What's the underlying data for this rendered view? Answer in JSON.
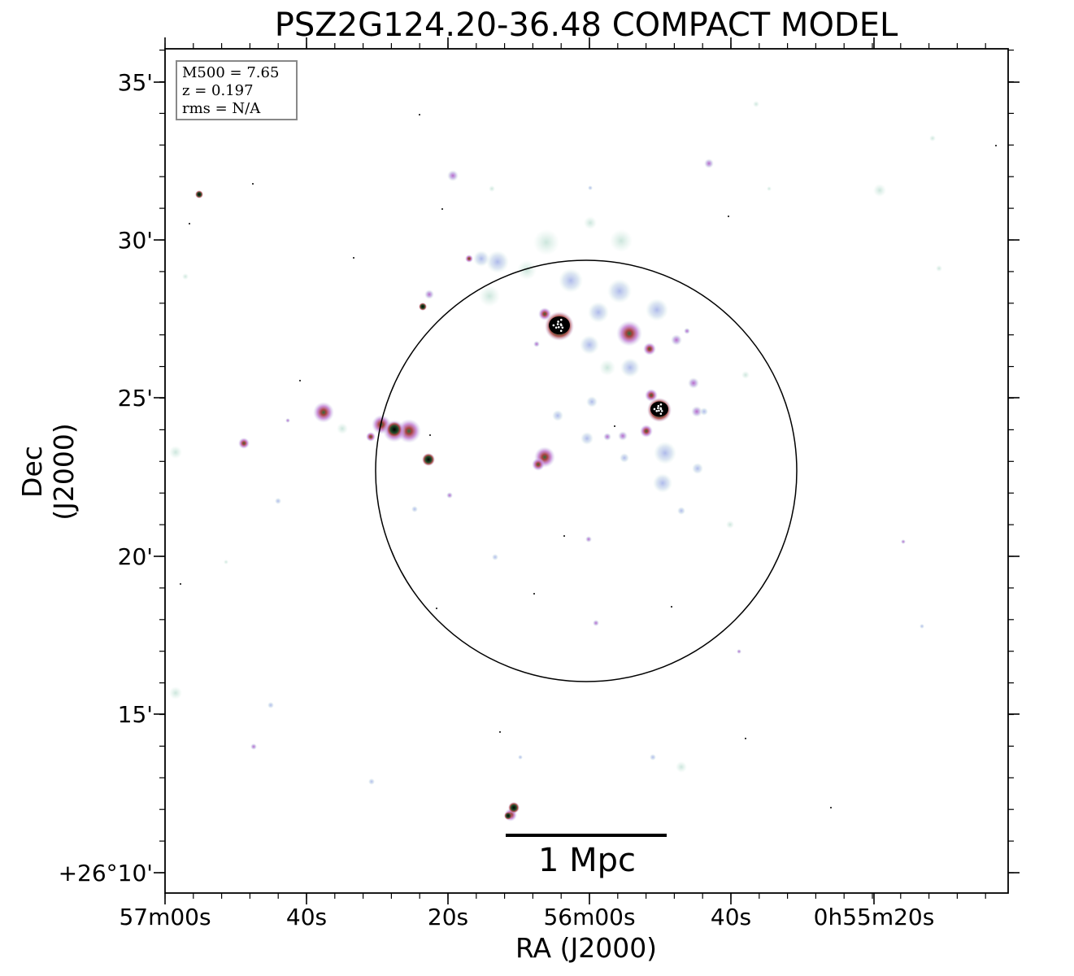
{
  "chart_data": {
    "type": "image",
    "title": "PSZ2G124.20-36.48 COMPACT MODEL",
    "xlabel": "RA (J2000)",
    "ylabel": "Dec (J2000)",
    "x_ticks": [
      "57m00s",
      "40s",
      "20s",
      "56m00s",
      "40s",
      "0h55m20s"
    ],
    "y_ticks": [
      "+26°10'",
      "15'",
      "20'",
      "25'",
      "30'",
      "35'"
    ],
    "info": [
      "M500 = 7.65",
      "z = 0.197",
      "rms = N/A"
    ],
    "scalebar_label": "1 Mpc",
    "colormap": [
      "#ffffff",
      "#cfe6dd",
      "#b9c7ea",
      "#c695d6",
      "#a8433e",
      "#000000"
    ]
  }
}
